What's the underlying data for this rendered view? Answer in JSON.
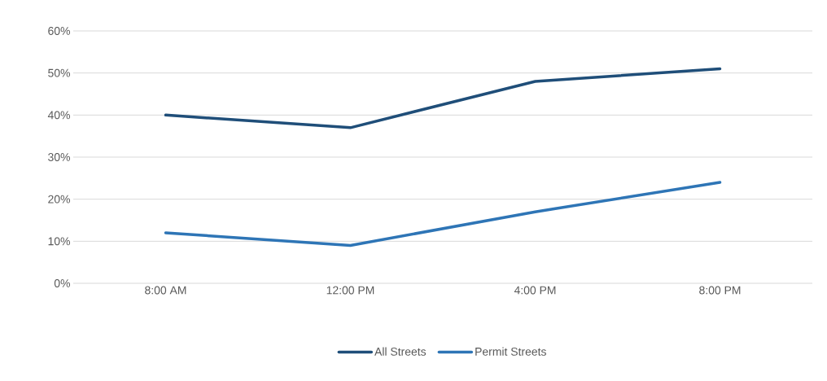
{
  "chart_data": {
    "type": "line",
    "categories": [
      "8:00 AM",
      "12:00 PM",
      "4:00 PM",
      "8:00 PM"
    ],
    "series": [
      {
        "name": "All Streets",
        "color": "#1f4e79",
        "values": [
          40,
          37,
          48,
          51
        ]
      },
      {
        "name": "Permit Streets",
        "color": "#2e75b6",
        "values": [
          12,
          9,
          17,
          24
        ]
      }
    ],
    "ylim": [
      0,
      60
    ],
    "yticks": [
      {
        "value": 0,
        "label": "0%"
      },
      {
        "value": 10,
        "label": "10%"
      },
      {
        "value": 20,
        "label": "20%"
      },
      {
        "value": 30,
        "label": "30%"
      },
      {
        "value": 40,
        "label": "40%"
      },
      {
        "value": 50,
        "label": "50%"
      },
      {
        "value": 60,
        "label": "60%"
      }
    ],
    "grid": "y",
    "legend": "bottom",
    "marker": "none",
    "line_style": "solid"
  }
}
